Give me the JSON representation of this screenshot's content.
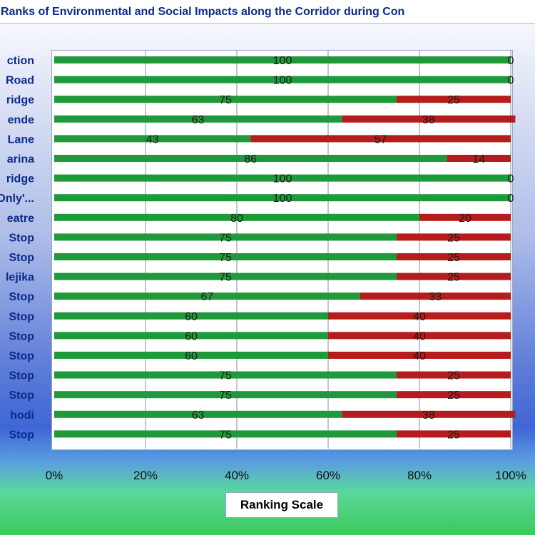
{
  "chart_data": {
    "type": "bar",
    "orientation": "horizontal",
    "stacked": "percent",
    "title": "Ranks of Environmental and Social Impacts along the Corridor during Con",
    "xlabel": "Ranking Scale",
    "ylabel": "",
    "xlim": [
      0,
      100
    ],
    "xticks": [
      "0%",
      "20%",
      "40%",
      "60%",
      "80%",
      "100%"
    ],
    "grid": "vertical",
    "legend": "none",
    "categories": [
      "ction",
      "Road",
      "ridge",
      "ende",
      "Lane",
      "arina",
      "ridge",
      "Only'...",
      "eatre",
      "Stop",
      "Stop",
      "lejika",
      "Stop",
      "Stop",
      "Stop",
      "Stop",
      "Stop",
      "Stop",
      "hodi",
      "Stop"
    ],
    "series": [
      {
        "values": [
          100,
          100,
          75,
          63,
          43,
          86,
          100,
          100,
          80,
          75,
          75,
          75,
          67,
          60,
          60,
          60,
          75,
          75,
          63,
          75
        ],
        "color": "#1f9a3a"
      },
      {
        "values": [
          0,
          0,
          25,
          38,
          57,
          14,
          0,
          0,
          20,
          25,
          25,
          25,
          33,
          40,
          40,
          40,
          25,
          25,
          38,
          25
        ],
        "color": "#b71c1c"
      }
    ]
  },
  "colors": {
    "label_text": "#0b2a8a",
    "grid": "#9aa0ad",
    "value_text": "#1a1a1a"
  }
}
